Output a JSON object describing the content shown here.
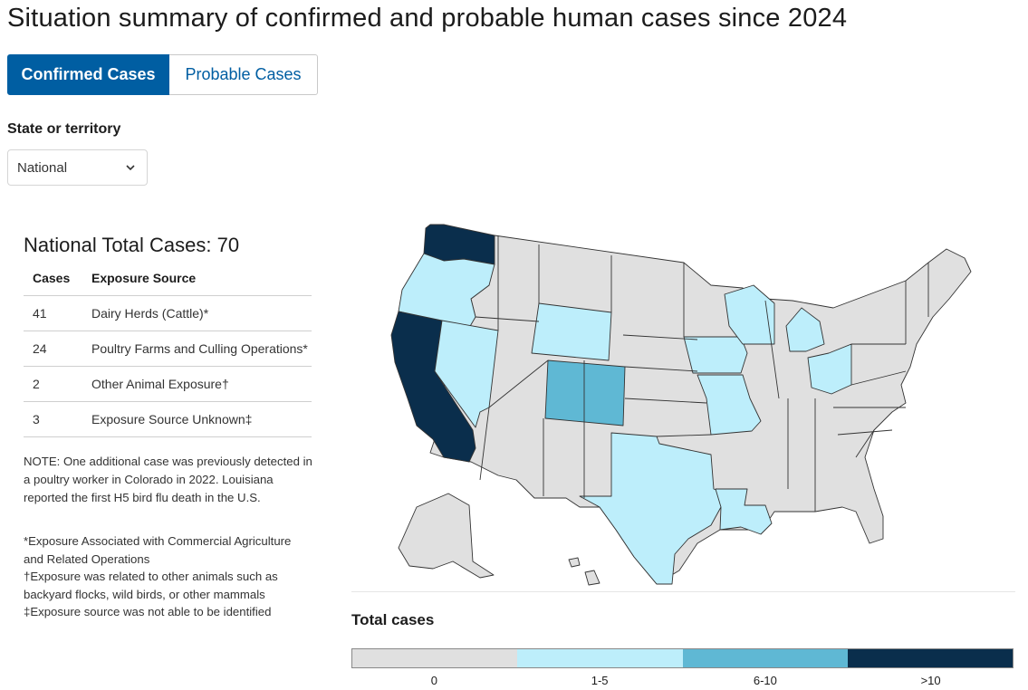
{
  "page": {
    "title": "Situation summary of confirmed and probable human cases since 2024"
  },
  "tabs": [
    {
      "label": "Confirmed Cases"
    },
    {
      "label": "Probable Cases"
    }
  ],
  "filter": {
    "label": "State or territory",
    "selected": "National"
  },
  "summary": {
    "total_label": "National Total Cases: 70",
    "headers": {
      "cases": "Cases",
      "source": "Exposure Source"
    },
    "rows": [
      {
        "cases": "41",
        "source": "Dairy Herds (Cattle)*"
      },
      {
        "cases": "24",
        "source": "Poultry Farms and Culling Operations*"
      },
      {
        "cases": "2",
        "source": "Other Animal Exposure†"
      },
      {
        "cases": "3",
        "source": "Exposure Source Unknown‡"
      }
    ],
    "note": "NOTE: One additional case was previously detected in a poultry worker in Colorado in 2022. Louisiana reported the first H5 bird flu death in the U.S.",
    "footnotes": [
      "*Exposure Associated with Commercial Agriculture and Related Operations",
      "†Exposure was related to other animals such as backyard flocks, wild birds, or other mammals",
      "‡Exposure source was not able to be identified"
    ]
  },
  "legend": {
    "title": "Total cases",
    "bins": [
      {
        "label": "0",
        "color": "#e0e0e0"
      },
      {
        "label": "1-5",
        "color": "#bdeefb"
      },
      {
        "label": "6-10",
        "color": "#5fb8d4"
      },
      {
        "label": ">10",
        "color": "#0a2e4c"
      }
    ]
  },
  "map": {
    "colors": {
      "zero": "#e0e0e0",
      "low": "#bdeefb",
      "mid": "#5fb8d4",
      "high": "#0a2e4c"
    },
    "highlighted_states": {
      "Washington": ">10",
      "California": ">10",
      "Colorado": "6-10",
      "Oregon": "1-5",
      "Nevada": "1-5",
      "Wyoming": "1-5",
      "Iowa": "1-5",
      "Missouri": "1-5",
      "Wisconsin": "1-5",
      "Michigan": "1-5",
      "Ohio": "1-5",
      "Texas": "1-5",
      "Louisiana": "1-5"
    }
  }
}
